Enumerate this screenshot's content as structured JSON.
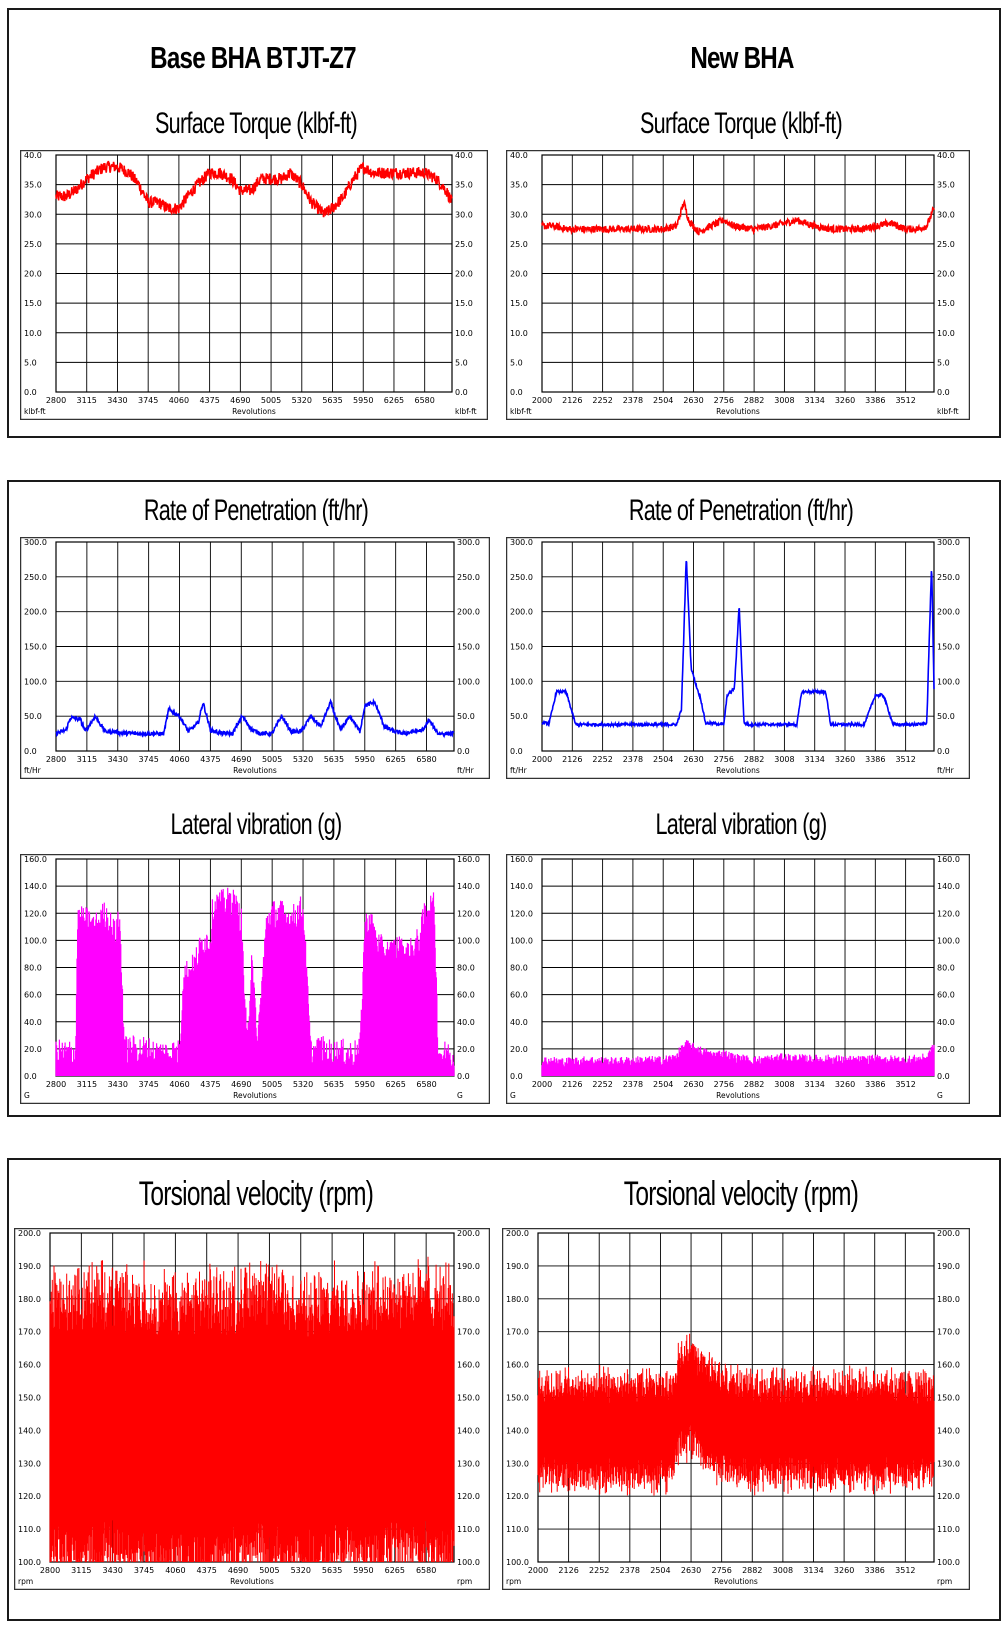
{
  "headers": {
    "left": "Base BHA BTJT-Z7",
    "right": "New BHA"
  },
  "colors": {
    "torque": "#ff0000",
    "rop": "#0000ff",
    "lateral": "#ff00ff",
    "torsional": "#ff0000"
  },
  "chart_data": [
    {
      "id": "torque-base",
      "type": "line",
      "title": "Surface Torque (klbf-ft)",
      "xlabel": "Revolutions",
      "unit": "klbf-ft",
      "ylim": [
        0,
        40
      ],
      "yticks": [
        0,
        5,
        10,
        15,
        20,
        25,
        30,
        35,
        40
      ],
      "xticks": [
        2800,
        3115,
        3430,
        3745,
        4060,
        4375,
        4690,
        5005,
        5320,
        5635,
        5950,
        6265,
        6580
      ],
      "xlim": [
        2800,
        6860
      ],
      "series": [
        {
          "color": "#ff0000",
          "noise": 1.0,
          "x": [
            2800,
            2900,
            3000,
            3115,
            3200,
            3300,
            3430,
            3550,
            3650,
            3745,
            3850,
            3950,
            4060,
            4150,
            4250,
            4375,
            4480,
            4600,
            4690,
            4800,
            4900,
            5005,
            5120,
            5200,
            5320,
            5420,
            5550,
            5635,
            5750,
            5850,
            5950,
            6050,
            6150,
            6265,
            6380,
            6500,
            6580,
            6700,
            6800,
            6860
          ],
          "y": [
            33,
            33,
            34,
            36,
            37,
            38,
            38,
            37,
            35,
            32,
            32,
            31,
            31,
            33,
            35,
            37,
            37,
            36,
            34,
            34,
            36,
            36,
            36,
            37,
            35,
            32,
            30,
            31,
            33,
            36,
            38,
            37,
            37,
            37,
            37,
            37,
            37,
            36,
            34,
            32
          ]
        }
      ]
    },
    {
      "id": "torque-new",
      "type": "line",
      "title": "Surface Torque (klbf-ft)",
      "xlabel": "Revolutions",
      "unit": "klbf-ft",
      "ylim": [
        0,
        40
      ],
      "yticks": [
        0,
        5,
        10,
        15,
        20,
        25,
        30,
        35,
        40
      ],
      "xticks": [
        2000,
        2126,
        2252,
        2378,
        2504,
        2630,
        2756,
        2882,
        3008,
        3134,
        3260,
        3386,
        3512
      ],
      "xlim": [
        2000,
        3630
      ],
      "series": [
        {
          "color": "#ff0000",
          "noise": 0.6,
          "x": [
            2000,
            2050,
            2100,
            2200,
            2300,
            2400,
            2500,
            2560,
            2590,
            2610,
            2650,
            2700,
            2756,
            2800,
            2882,
            2950,
            3008,
            3060,
            3134,
            3200,
            3260,
            3330,
            3386,
            3450,
            3512,
            3560,
            3600,
            3630
          ],
          "y": [
            28,
            28,
            27.5,
            27.5,
            27.5,
            27.5,
            27.5,
            28,
            32,
            29,
            27,
            28,
            29,
            28,
            27.5,
            28,
            28.5,
            29,
            28,
            27.5,
            27.5,
            27.5,
            28,
            28.5,
            27.5,
            27.5,
            28,
            31
          ]
        }
      ]
    },
    {
      "id": "rop-base",
      "type": "line",
      "title": "Rate of Penetration (ft/hr)",
      "xlabel": "Revolutions",
      "unit": "ft/Hr",
      "ylim": [
        0,
        300
      ],
      "yticks": [
        0,
        50,
        100,
        150,
        200,
        250,
        300
      ],
      "xticks": [
        2800,
        3115,
        3430,
        3745,
        4060,
        4375,
        4690,
        5005,
        5320,
        5635,
        5950,
        6265,
        6580
      ],
      "xlim": [
        2800,
        6860
      ],
      "series": [
        {
          "color": "#0000ff",
          "noise": 3,
          "x": [
            2800,
            2900,
            2950,
            3050,
            3100,
            3200,
            3300,
            3400,
            3450,
            3600,
            3800,
            3900,
            3950,
            4060,
            4150,
            4250,
            4300,
            4375,
            4500,
            4600,
            4700,
            4800,
            4900,
            5005,
            5100,
            5200,
            5300,
            5400,
            5500,
            5600,
            5700,
            5800,
            5900,
            5950,
            6050,
            6150,
            6250,
            6350,
            6450,
            6550,
            6600,
            6700,
            6860
          ],
          "y": [
            25,
            30,
            48,
            45,
            28,
            50,
            28,
            28,
            26,
            25,
            25,
            25,
            60,
            50,
            28,
            40,
            70,
            30,
            25,
            25,
            50,
            30,
            25,
            25,
            50,
            28,
            28,
            50,
            35,
            70,
            30,
            50,
            28,
            65,
            70,
            35,
            28,
            25,
            28,
            30,
            45,
            25,
            25
          ]
        }
      ]
    },
    {
      "id": "rop-new",
      "type": "line",
      "title": "Rate of Penetration (ft/hr)",
      "xlabel": "Revolutions",
      "unit": "ft/Hr",
      "ylim": [
        0,
        300
      ],
      "yticks": [
        0,
        50,
        100,
        150,
        200,
        250,
        300
      ],
      "xticks": [
        2000,
        2126,
        2252,
        2378,
        2504,
        2630,
        2756,
        2882,
        3008,
        3134,
        3260,
        3386,
        3512
      ],
      "xlim": [
        2000,
        3630
      ],
      "series": [
        {
          "color": "#0000ff",
          "noise": 2,
          "x": [
            2000,
            2030,
            2060,
            2100,
            2140,
            2200,
            2300,
            2400,
            2500,
            2560,
            2580,
            2600,
            2620,
            2640,
            2660,
            2680,
            2700,
            2756,
            2770,
            2800,
            2820,
            2840,
            2860,
            2900,
            3008,
            3060,
            3080,
            3100,
            3134,
            3180,
            3200,
            3260,
            3300,
            3340,
            3386,
            3420,
            3460,
            3512,
            3560,
            3600,
            3620,
            3630
          ],
          "y": [
            40,
            40,
            85,
            85,
            38,
            38,
            38,
            38,
            38,
            38,
            60,
            280,
            120,
            95,
            75,
            40,
            40,
            38,
            80,
            90,
            210,
            40,
            38,
            38,
            38,
            38,
            85,
            85,
            85,
            85,
            38,
            38,
            38,
            38,
            80,
            80,
            38,
            38,
            38,
            40,
            270,
            90
          ]
        }
      ]
    },
    {
      "id": "lateral-base",
      "type": "area",
      "title": "Lateral vibration (g)",
      "xlabel": "Revolutions",
      "unit": "G",
      "ylim": [
        0,
        160
      ],
      "yticks": [
        0,
        20,
        40,
        60,
        80,
        100,
        120,
        140,
        160
      ],
      "xticks": [
        2800,
        3115,
        3430,
        3745,
        4060,
        4375,
        4690,
        5005,
        5320,
        5635,
        5950,
        6265,
        6580
      ],
      "xlim": [
        2800,
        6860
      ],
      "series": [
        {
          "color": "#ff00ff",
          "noise": 22,
          "x": [
            2800,
            3000,
            3020,
            3100,
            3200,
            3300,
            3400,
            3450,
            3500,
            3600,
            3700,
            3800,
            3900,
            4000,
            4060,
            4100,
            4200,
            4300,
            4375,
            4400,
            4600,
            4690,
            4750,
            4800,
            4850,
            4950,
            5005,
            5100,
            5200,
            5320,
            5400,
            5500,
            5600,
            5700,
            5800,
            5900,
            5950,
            6000,
            6100,
            6200,
            6265,
            6400,
            6500,
            6580,
            6660,
            6700,
            6860
          ],
          "y": [
            12,
            12,
            110,
            110,
            105,
            115,
            100,
            110,
            15,
            15,
            15,
            12,
            12,
            12,
            12,
            70,
            75,
            95,
            95,
            120,
            125,
            110,
            15,
            90,
            15,
            110,
            115,
            115,
            110,
            120,
            12,
            15,
            12,
            12,
            12,
            12,
            105,
            110,
            90,
            85,
            90,
            85,
            95,
            120,
            120,
            12,
            10
          ]
        }
      ]
    },
    {
      "id": "lateral-new",
      "type": "area",
      "title": "Lateral vibration (g)",
      "xlabel": "Revolutions",
      "unit": "G",
      "ylim": [
        0,
        160
      ],
      "yticks": [
        0,
        20,
        40,
        60,
        80,
        100,
        120,
        140,
        160
      ],
      "xticks": [
        2000,
        2126,
        2252,
        2378,
        2504,
        2630,
        2756,
        2882,
        3008,
        3134,
        3260,
        3386,
        3512
      ],
      "xlim": [
        2000,
        3630
      ],
      "series": [
        {
          "color": "#ff00ff",
          "noise": 7,
          "x": [
            2000,
            2100,
            2200,
            2300,
            2400,
            2500,
            2550,
            2600,
            2650,
            2700,
            2756,
            2800,
            2882,
            2950,
            3008,
            3100,
            3200,
            3300,
            3400,
            3512,
            3600,
            3630
          ],
          "y": [
            10,
            9,
            10,
            9,
            10,
            10,
            12,
            22,
            18,
            14,
            15,
            12,
            10,
            11,
            12,
            11,
            11,
            10,
            11,
            10,
            12,
            20
          ]
        }
      ]
    },
    {
      "id": "torsional-base",
      "type": "area",
      "title": "Torsional velocity (rpm)",
      "xlabel": "Revolutions",
      "unit": "rpm",
      "ylim": [
        100,
        200
      ],
      "yticks": [
        100,
        110,
        120,
        130,
        140,
        150,
        160,
        170,
        180,
        190,
        200
      ],
      "xticks": [
        2800,
        3115,
        3430,
        3745,
        4060,
        4375,
        4690,
        5005,
        5320,
        5635,
        5950,
        6265,
        6580
      ],
      "xlim": [
        2800,
        6860
      ],
      "band": true,
      "series": [
        {
          "color": "#ff0000",
          "noise": 8,
          "x": [
            2800,
            3100,
            3430,
            3745,
            4060,
            4375,
            4690,
            5005,
            5320,
            5635,
            5950,
            6265,
            6580,
            6860
          ],
          "y": [
            140,
            140,
            142,
            140,
            138,
            140,
            140,
            142,
            138,
            140,
            140,
            142,
            142,
            140
          ],
          "spread": 28
        }
      ]
    },
    {
      "id": "torsional-new",
      "type": "area",
      "title": "Torsional velocity (rpm)",
      "xlabel": "Revolutions",
      "unit": "rpm",
      "ylim": [
        100,
        200
      ],
      "yticks": [
        100,
        110,
        120,
        130,
        140,
        150,
        160,
        170,
        180,
        190,
        200
      ],
      "xticks": [
        2000,
        2126,
        2252,
        2378,
        2504,
        2630,
        2756,
        2882,
        3008,
        3134,
        3260,
        3386,
        3512
      ],
      "xlim": [
        2000,
        3630
      ],
      "band": true,
      "series": [
        {
          "color": "#ff0000",
          "noise": 4,
          "x": [
            2000,
            2100,
            2252,
            2378,
            2504,
            2560,
            2580,
            2630,
            2700,
            2756,
            2882,
            3008,
            3134,
            3260,
            3386,
            3512,
            3600,
            3630
          ],
          "y": [
            140,
            140,
            140,
            140,
            140,
            140,
            150,
            150,
            145,
            142,
            140,
            140,
            140,
            140,
            140,
            140,
            140,
            140
          ],
          "spread": 8
        }
      ]
    }
  ]
}
